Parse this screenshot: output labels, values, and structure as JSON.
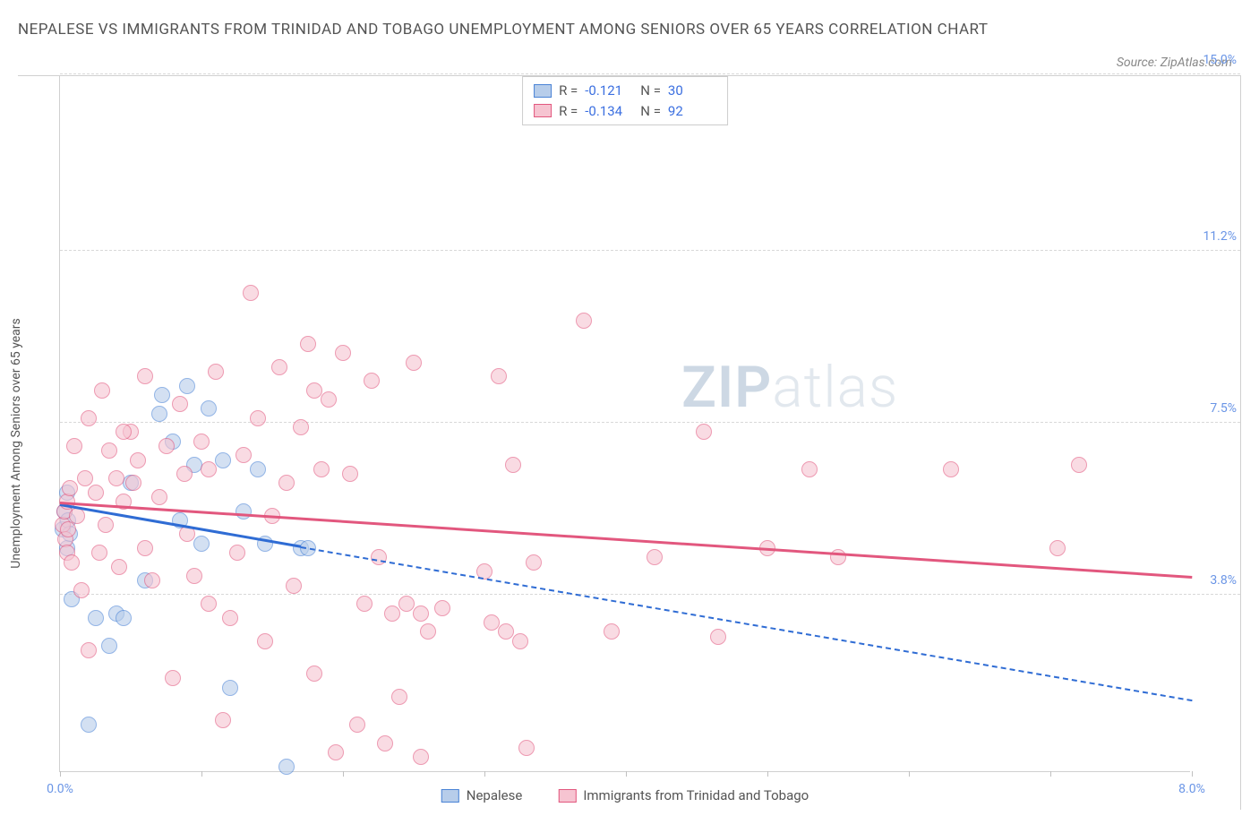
{
  "title": "NEPALESE VS IMMIGRANTS FROM TRINIDAD AND TOBAGO UNEMPLOYMENT AMONG SENIORS OVER 65 YEARS CORRELATION CHART",
  "source": "Source: ZipAtlas.com",
  "ylabel": "Unemployment Among Seniors over 65 years",
  "watermark_a": "ZIP",
  "watermark_b": "atlas",
  "chart": {
    "type": "scatter",
    "background_color": "#ffffff",
    "grid_color": "#d8d8d8",
    "border_color": "#d0d0d0",
    "axis_tick_color": "#6a95e6",
    "xlim": [
      0.0,
      8.0
    ],
    "ylim": [
      0.0,
      15.0
    ],
    "xtick_positions": [
      0.0,
      1.0,
      2.0,
      3.0,
      4.0,
      5.0,
      6.0,
      7.0,
      8.0
    ],
    "xtick_labels_shown": {
      "0": "0.0%",
      "8": "8.0%"
    },
    "ytick_labels": [
      {
        "v": 3.8,
        "label": "3.8%"
      },
      {
        "v": 7.5,
        "label": "7.5%"
      },
      {
        "v": 11.2,
        "label": "11.2%"
      },
      {
        "v": 15.0,
        "label": "15.0%"
      }
    ],
    "point_radius": 9,
    "point_opacity": 0.6,
    "series": [
      {
        "id": "nepalese",
        "label": "Nepalese",
        "fill": "#b7cdea",
        "stroke": "#4a83d6",
        "r_value": "-0.121",
        "n_value": "30",
        "trend": {
          "x1": 0.0,
          "y1": 5.7,
          "x2": 1.7,
          "y2": 4.8,
          "x2_dash": 8.0,
          "y2_dash": 1.5,
          "color": "#2f6cd4",
          "width": 3
        },
        "points": [
          [
            0.02,
            5.2
          ],
          [
            0.03,
            5.6
          ],
          [
            0.05,
            4.8
          ],
          [
            0.05,
            6.0
          ],
          [
            0.06,
            5.4
          ],
          [
            0.07,
            5.1
          ],
          [
            0.08,
            3.7
          ],
          [
            0.2,
            1.0
          ],
          [
            0.25,
            3.3
          ],
          [
            0.35,
            2.7
          ],
          [
            0.4,
            3.4
          ],
          [
            0.45,
            3.3
          ],
          [
            0.5,
            6.2
          ],
          [
            0.6,
            4.1
          ],
          [
            0.7,
            7.7
          ],
          [
            0.72,
            8.1
          ],
          [
            0.8,
            7.1
          ],
          [
            0.85,
            5.4
          ],
          [
            0.9,
            8.3
          ],
          [
            0.95,
            6.6
          ],
          [
            1.0,
            4.9
          ],
          [
            1.05,
            7.8
          ],
          [
            1.15,
            6.7
          ],
          [
            1.2,
            1.8
          ],
          [
            1.3,
            5.6
          ],
          [
            1.4,
            6.5
          ],
          [
            1.45,
            4.9
          ],
          [
            1.6,
            0.1
          ],
          [
            1.7,
            4.8
          ],
          [
            1.75,
            4.8
          ]
        ]
      },
      {
        "id": "trinidad",
        "label": "Immigrants from Trinidad and Tobago",
        "fill": "#f6c4d1",
        "stroke": "#e2577e",
        "r_value": "-0.134",
        "n_value": "92",
        "trend": {
          "x1": 0.0,
          "y1": 5.75,
          "x2": 8.0,
          "y2": 4.15,
          "color": "#e2577e",
          "width": 3
        },
        "points": [
          [
            0.02,
            5.3
          ],
          [
            0.03,
            5.6
          ],
          [
            0.04,
            5.0
          ],
          [
            0.05,
            5.8
          ],
          [
            0.05,
            4.7
          ],
          [
            0.06,
            5.2
          ],
          [
            0.07,
            6.1
          ],
          [
            0.08,
            4.5
          ],
          [
            0.1,
            7.0
          ],
          [
            0.12,
            5.5
          ],
          [
            0.15,
            3.9
          ],
          [
            0.18,
            6.3
          ],
          [
            0.2,
            2.6
          ],
          [
            0.2,
            7.6
          ],
          [
            0.25,
            6.0
          ],
          [
            0.28,
            4.7
          ],
          [
            0.3,
            8.2
          ],
          [
            0.32,
            5.3
          ],
          [
            0.35,
            6.9
          ],
          [
            0.4,
            6.3
          ],
          [
            0.42,
            4.4
          ],
          [
            0.45,
            5.8
          ],
          [
            0.5,
            7.3
          ],
          [
            0.52,
            6.2
          ],
          [
            0.55,
            6.7
          ],
          [
            0.6,
            8.5
          ],
          [
            0.65,
            4.1
          ],
          [
            0.7,
            5.9
          ],
          [
            0.75,
            7.0
          ],
          [
            0.8,
            2.0
          ],
          [
            0.85,
            7.9
          ],
          [
            0.88,
            6.4
          ],
          [
            0.9,
            5.1
          ],
          [
            0.95,
            4.2
          ],
          [
            1.0,
            7.1
          ],
          [
            1.05,
            6.5
          ],
          [
            1.1,
            8.6
          ],
          [
            1.15,
            1.1
          ],
          [
            1.2,
            3.3
          ],
          [
            1.25,
            4.7
          ],
          [
            1.3,
            6.8
          ],
          [
            1.35,
            10.3
          ],
          [
            1.4,
            7.6
          ],
          [
            1.45,
            2.8
          ],
          [
            1.5,
            5.5
          ],
          [
            1.55,
            8.7
          ],
          [
            1.6,
            6.2
          ],
          [
            1.65,
            4.0
          ],
          [
            1.7,
            7.4
          ],
          [
            1.75,
            9.2
          ],
          [
            1.8,
            2.1
          ],
          [
            1.8,
            8.2
          ],
          [
            1.85,
            6.5
          ],
          [
            1.9,
            8.0
          ],
          [
            1.95,
            0.4
          ],
          [
            2.0,
            9.0
          ],
          [
            2.05,
            6.4
          ],
          [
            2.1,
            1.0
          ],
          [
            2.15,
            3.6
          ],
          [
            2.2,
            8.4
          ],
          [
            2.25,
            4.6
          ],
          [
            2.3,
            0.6
          ],
          [
            2.35,
            3.4
          ],
          [
            2.4,
            1.6
          ],
          [
            2.45,
            3.6
          ],
          [
            2.5,
            8.8
          ],
          [
            2.55,
            0.3
          ],
          [
            2.6,
            3.0
          ],
          [
            2.55,
            3.4
          ],
          [
            2.7,
            3.5
          ],
          [
            3.0,
            4.3
          ],
          [
            3.05,
            3.2
          ],
          [
            3.1,
            8.5
          ],
          [
            3.15,
            3.0
          ],
          [
            3.2,
            6.6
          ],
          [
            3.25,
            2.8
          ],
          [
            3.3,
            0.5
          ],
          [
            3.35,
            4.5
          ],
          [
            3.7,
            9.7
          ],
          [
            3.9,
            3.0
          ],
          [
            4.2,
            4.6
          ],
          [
            4.55,
            7.3
          ],
          [
            4.65,
            2.9
          ],
          [
            5.0,
            4.8
          ],
          [
            5.3,
            6.5
          ],
          [
            5.5,
            4.6
          ],
          [
            6.3,
            6.5
          ],
          [
            7.05,
            4.8
          ],
          [
            7.2,
            6.6
          ],
          [
            0.45,
            7.3
          ],
          [
            0.6,
            4.8
          ],
          [
            1.05,
            3.6
          ]
        ]
      }
    ],
    "stats_box": {
      "r_label": "R =",
      "n_label": "N ="
    },
    "legend": {
      "items": [
        "nepalese",
        "trinidad"
      ]
    }
  }
}
